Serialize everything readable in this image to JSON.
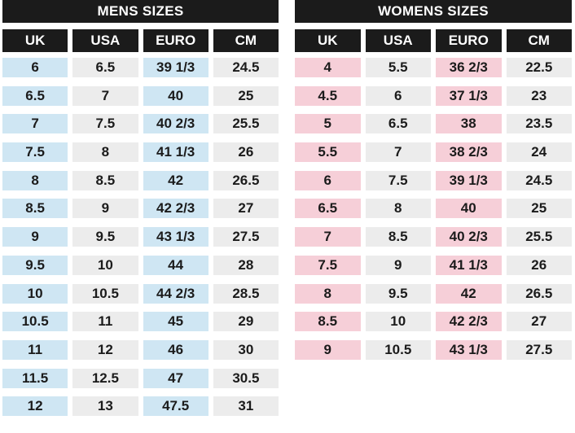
{
  "columns": [
    "UK",
    "USA",
    "EURO",
    "CM"
  ],
  "mens": {
    "title": "MENS SIZES",
    "rows": [
      [
        "6",
        "6.5",
        "39 1/3",
        "24.5"
      ],
      [
        "6.5",
        "7",
        "40",
        "25"
      ],
      [
        "7",
        "7.5",
        "40 2/3",
        "25.5"
      ],
      [
        "7.5",
        "8",
        "41 1/3",
        "26"
      ],
      [
        "8",
        "8.5",
        "42",
        "26.5"
      ],
      [
        "8.5",
        "9",
        "42 2/3",
        "27"
      ],
      [
        "9",
        "9.5",
        "43 1/3",
        "27.5"
      ],
      [
        "9.5",
        "10",
        "44",
        "28"
      ],
      [
        "10",
        "10.5",
        "44 2/3",
        "28.5"
      ],
      [
        "10.5",
        "11",
        "45",
        "29"
      ],
      [
        "11",
        "12",
        "46",
        "30"
      ],
      [
        "11.5",
        "12.5",
        "47",
        "30.5"
      ],
      [
        "12",
        "13",
        "47.5",
        "31"
      ]
    ]
  },
  "womens": {
    "title": "WOMENS SIZES",
    "rows": [
      [
        "4",
        "5.5",
        "36 2/3",
        "22.5"
      ],
      [
        "4.5",
        "6",
        "37 1/3",
        "23"
      ],
      [
        "5",
        "6.5",
        "38",
        "23.5"
      ],
      [
        "5.5",
        "7",
        "38 2/3",
        "24"
      ],
      [
        "6",
        "7.5",
        "39 1/3",
        "24.5"
      ],
      [
        "6.5",
        "8",
        "40",
        "25"
      ],
      [
        "7",
        "8.5",
        "40 2/3",
        "25.5"
      ],
      [
        "7.5",
        "9",
        "41 1/3",
        "26"
      ],
      [
        "8",
        "9.5",
        "42",
        "26.5"
      ],
      [
        "8.5",
        "10",
        "42 2/3",
        "27"
      ],
      [
        "9",
        "10.5",
        "43 1/3",
        "27.5"
      ]
    ]
  },
  "colors": {
    "header_bg": "#1b1b1b",
    "mens_highlight": "#cfe6f3",
    "womens_highlight": "#f6cfd8",
    "neutral_cell": "#ececec"
  }
}
